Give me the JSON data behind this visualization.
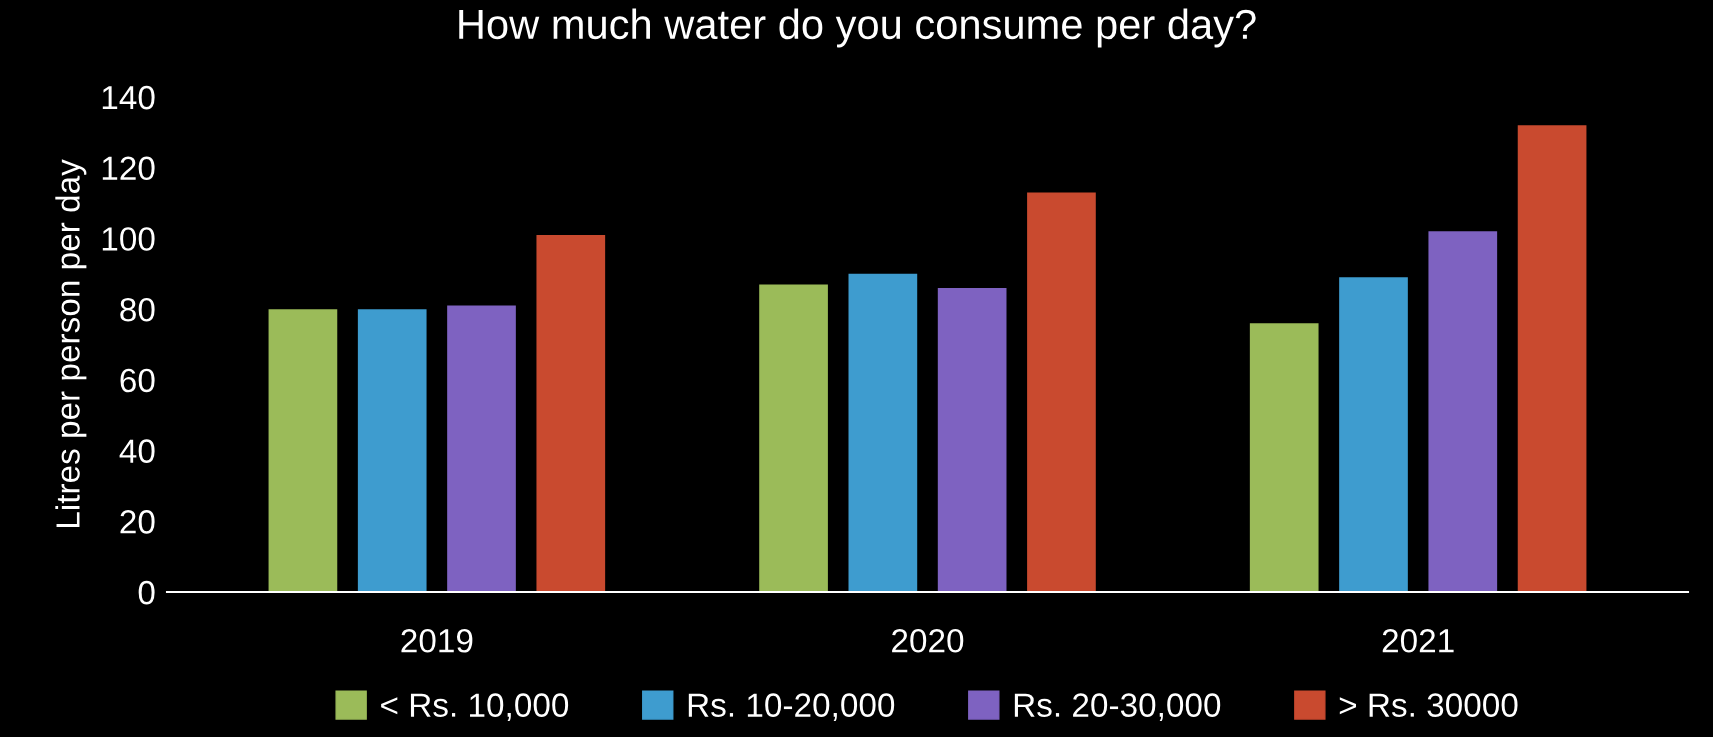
{
  "chart_data": {
    "type": "bar",
    "title": "How much water do you consume per day?",
    "ylabel": "Litres per person per day",
    "categories": [
      "2019",
      "2020",
      "2021"
    ],
    "series": [
      {
        "name": "< Rs. 10,000",
        "color": "#9bbb59",
        "values": [
          80,
          87,
          76
        ]
      },
      {
        "name": "Rs. 10-20,000",
        "color": "#3e9ccf",
        "values": [
          80,
          90,
          89
        ]
      },
      {
        "name": "Rs. 20-30,000",
        "color": "#7e62c1",
        "values": [
          81,
          86,
          102
        ]
      },
      {
        "name": "> Rs. 30000",
        "color": "#c94a2f",
        "values": [
          101,
          113,
          132
        ]
      }
    ],
    "ylim": [
      0,
      140
    ],
    "yticks": [
      0,
      20,
      40,
      60,
      80,
      100,
      120,
      140
    ],
    "grid": false,
    "legend": "bottom"
  }
}
